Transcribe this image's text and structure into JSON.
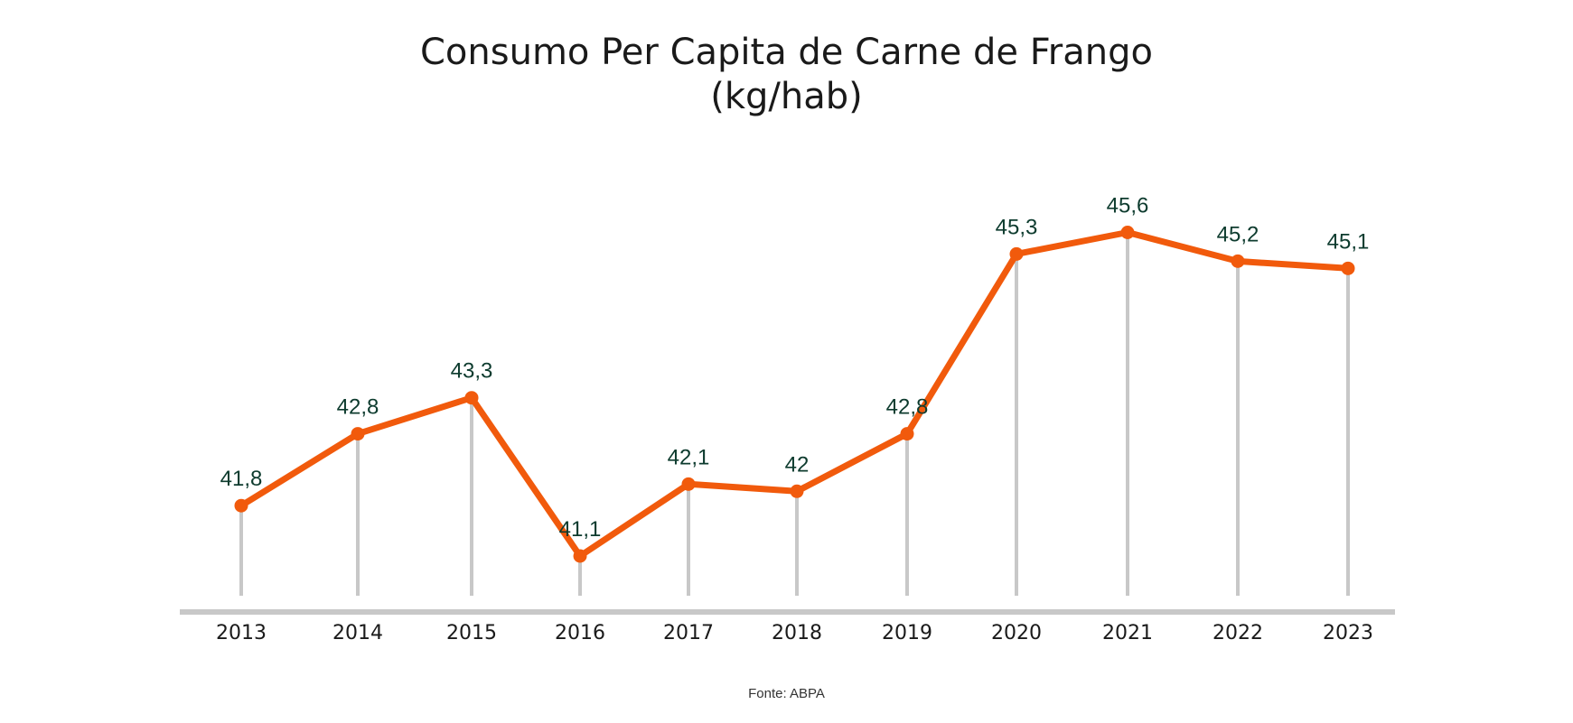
{
  "chart_data": {
    "type": "line",
    "title": "Consumo Per Capita de Carne de Frango",
    "subtitle": "(kg/hab)",
    "categories": [
      "2013",
      "2014",
      "2015",
      "2016",
      "2017",
      "2018",
      "2019",
      "2020",
      "2021",
      "2022",
      "2023"
    ],
    "series": [
      {
        "values": [
          41.8,
          42.8,
          43.3,
          41.1,
          42.1,
          42.0,
          42.8,
          45.3,
          45.6,
          45.2,
          45.1
        ],
        "data_labels": [
          "41,8",
          "42,8",
          "43,3",
          "41,1",
          "42,1",
          "42",
          "42,8",
          "45,3",
          "45,6",
          "45,2",
          "45,1"
        ]
      }
    ],
    "ylim": [
      40.5,
      46.5
    ],
    "grid": false,
    "source": "Fonte: ABPA",
    "colors": {
      "line": "#f15a0c",
      "label": "#0d3b2e",
      "drop_line": "#c8c8c8",
      "axis": "#c8c8c8",
      "tick_label": "#1a1a1a"
    }
  }
}
